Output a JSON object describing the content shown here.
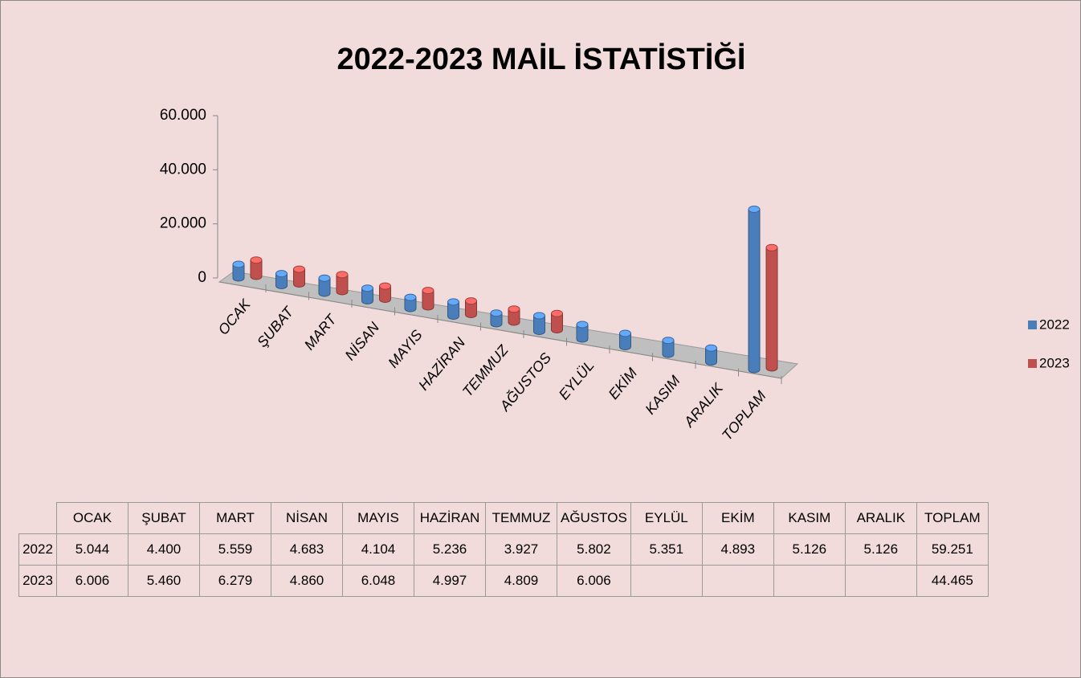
{
  "chart_data": {
    "type": "bar",
    "title": "2022-2023 MAİL İSTATİSTİĞİ",
    "categories": [
      "OCAK",
      "ŞUBAT",
      "MART",
      "NİSAN",
      "MAYIS",
      "HAZİRAN",
      "TEMMUZ",
      "AĞUSTOS",
      "EYLÜL",
      "EKİM",
      "KASIM",
      "ARALIK",
      "TOPLAM"
    ],
    "series": [
      {
        "name": "2022",
        "color": "#4a7ebb",
        "values": [
          5044,
          4400,
          5559,
          4683,
          4104,
          5236,
          3927,
          5802,
          5351,
          4893,
          5126,
          5126,
          59251
        ],
        "value_labels": [
          "5.044",
          "4.400",
          "5.559",
          "4.683",
          "4.104",
          "5.236",
          "3.927",
          "5.802",
          "5.351",
          "4.893",
          "5.126",
          "5.126",
          "59.251"
        ]
      },
      {
        "name": "2023",
        "color": "#c0504d",
        "values": [
          6006,
          5460,
          6279,
          4860,
          6048,
          4997,
          4809,
          6006,
          null,
          null,
          null,
          null,
          44465
        ],
        "value_labels": [
          "6.006",
          "5.460",
          "6.279",
          "4.860",
          "6.048",
          "4.997",
          "4.809",
          "6.006",
          null,
          null,
          null,
          null,
          "44.465"
        ]
      }
    ],
    "ylim": [
      0,
      60000
    ],
    "yticks": [
      0,
      {
        "value": 20000,
        "label": "20.000"
      },
      {
        "value": 40000,
        "label": "40.000"
      },
      {
        "value": 60000,
        "label": "60.000"
      }
    ],
    "legend": "right"
  }
}
